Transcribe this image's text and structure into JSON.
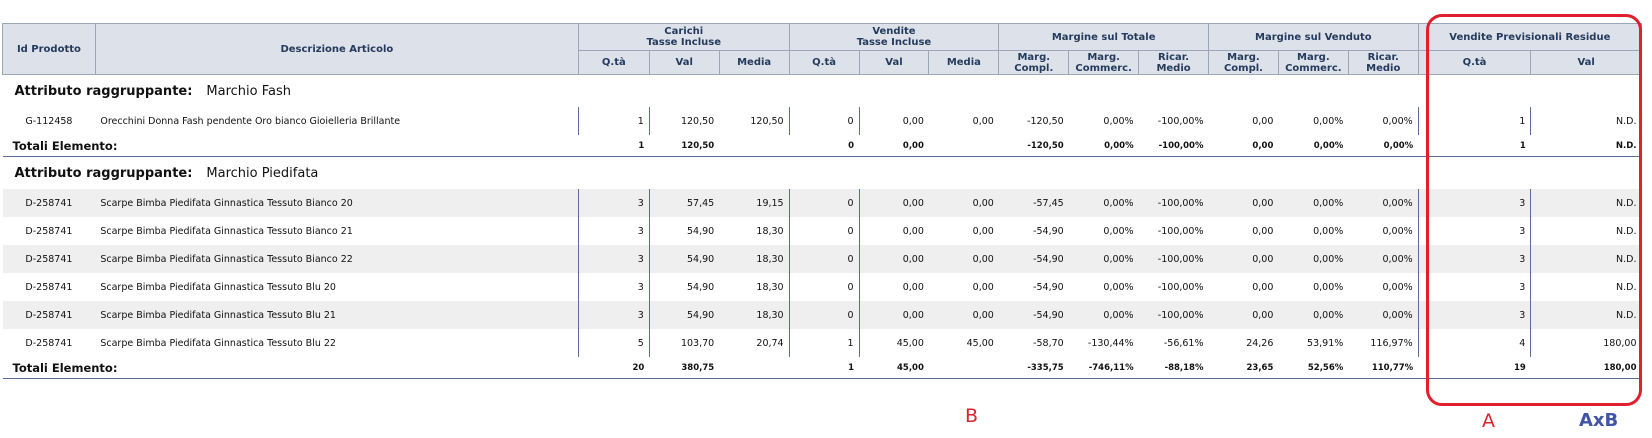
{
  "header": {
    "id_prodotto": "Id Prodotto",
    "descrizione": "Descrizione Articolo",
    "groups": {
      "carichi_1": "Carichi",
      "carichi_2": "Tasse Incluse",
      "vendite_1": "Vendite",
      "vendite_2": "Tasse Incluse",
      "margine_totale": "Margine sul Totale",
      "margine_venduto": "Margine sul Venduto",
      "previsionali": "Vendite Previsionali Residue"
    },
    "sub": {
      "qta": "Q.tà",
      "val": "Val",
      "media": "Media",
      "marg_compl": "Marg. Compl.",
      "marg_commerc": "Marg. Commerc.",
      "ricar_medio": "Ricar. Medio"
    }
  },
  "groups": [
    {
      "label": "Attributo raggruppante:",
      "name": "Marchio Fash",
      "rows": [
        {
          "id": "G-112458",
          "desc": "Orecchini Donna Fash pendente Oro bianco Gioielleria Brillante",
          "c_qta": "1",
          "c_val": "120,50",
          "c_media": "120,50",
          "v_qta": "0",
          "v_val": "0,00",
          "v_media": "0,00",
          "mt_compl": "-120,50",
          "mt_comm": "0,00%",
          "mt_ricar": "-100,00%",
          "mv_compl": "0,00",
          "mv_comm": "0,00%",
          "mv_ricar": "0,00%",
          "p_qta": "1",
          "p_val": "N.D."
        }
      ],
      "total": {
        "label": "Totali Elemento:",
        "c_qta": "1",
        "c_val": "120,50",
        "v_qta": "0",
        "v_val": "0,00",
        "mt_compl": "-120,50",
        "mt_comm": "0,00%",
        "mt_ricar": "-100,00%",
        "mv_compl": "0,00",
        "mv_comm": "0,00%",
        "mv_ricar": "0,00%",
        "p_qta": "1",
        "p_val": "N.D."
      }
    },
    {
      "label": "Attributo raggruppante:",
      "name": "Marchio Piedifata",
      "rows": [
        {
          "id": "D-258741",
          "desc": "Scarpe Bimba Piedifata Ginnastica Tessuto Bianco 20",
          "c_qta": "3",
          "c_val": "57,45",
          "c_media": "19,15",
          "v_qta": "0",
          "v_val": "0,00",
          "v_media": "0,00",
          "mt_compl": "-57,45",
          "mt_comm": "0,00%",
          "mt_ricar": "-100,00%",
          "mv_compl": "0,00",
          "mv_comm": "0,00%",
          "mv_ricar": "0,00%",
          "p_qta": "3",
          "p_val": "N.D."
        },
        {
          "id": "D-258741",
          "desc": "Scarpe Bimba Piedifata Ginnastica Tessuto Bianco 21",
          "c_qta": "3",
          "c_val": "54,90",
          "c_media": "18,30",
          "v_qta": "0",
          "v_val": "0,00",
          "v_media": "0,00",
          "mt_compl": "-54,90",
          "mt_comm": "0,00%",
          "mt_ricar": "-100,00%",
          "mv_compl": "0,00",
          "mv_comm": "0,00%",
          "mv_ricar": "0,00%",
          "p_qta": "3",
          "p_val": "N.D."
        },
        {
          "id": "D-258741",
          "desc": "Scarpe Bimba Piedifata Ginnastica Tessuto Bianco 22",
          "c_qta": "3",
          "c_val": "54,90",
          "c_media": "18,30",
          "v_qta": "0",
          "v_val": "0,00",
          "v_media": "0,00",
          "mt_compl": "-54,90",
          "mt_comm": "0,00%",
          "mt_ricar": "-100,00%",
          "mv_compl": "0,00",
          "mv_comm": "0,00%",
          "mv_ricar": "0,00%",
          "p_qta": "3",
          "p_val": "N.D."
        },
        {
          "id": "D-258741",
          "desc": "Scarpe Bimba Piedifata Ginnastica Tessuto Blu 20",
          "c_qta": "3",
          "c_val": "54,90",
          "c_media": "18,30",
          "v_qta": "0",
          "v_val": "0,00",
          "v_media": "0,00",
          "mt_compl": "-54,90",
          "mt_comm": "0,00%",
          "mt_ricar": "-100,00%",
          "mv_compl": "0,00",
          "mv_comm": "0,00%",
          "mv_ricar": "0,00%",
          "p_qta": "3",
          "p_val": "N.D."
        },
        {
          "id": "D-258741",
          "desc": "Scarpe Bimba Piedifata Ginnastica Tessuto Blu 21",
          "c_qta": "3",
          "c_val": "54,90",
          "c_media": "18,30",
          "v_qta": "0",
          "v_val": "0,00",
          "v_media": "0,00",
          "mt_compl": "-54,90",
          "mt_comm": "0,00%",
          "mt_ricar": "-100,00%",
          "mv_compl": "0,00",
          "mv_comm": "0,00%",
          "mv_ricar": "0,00%",
          "p_qta": "3",
          "p_val": "N.D."
        },
        {
          "id": "D-258741",
          "desc": "Scarpe Bimba Piedifata Ginnastica Tessuto Blu 22",
          "c_qta": "5",
          "c_val": "103,70",
          "c_media": "20,74",
          "v_qta": "1",
          "v_val": "45,00",
          "v_media": "45,00",
          "mt_compl": "-58,70",
          "mt_comm": "-130,44%",
          "mt_ricar": "-56,61%",
          "mv_compl": "24,26",
          "mv_comm": "53,91%",
          "mv_ricar": "116,97%",
          "p_qta": "4",
          "p_val": "180,00"
        }
      ],
      "total": {
        "label": "Totali Elemento:",
        "c_qta": "20",
        "c_val": "380,75",
        "v_qta": "1",
        "v_val": "45,00",
        "mt_compl": "-335,75",
        "mt_comm": "-746,11%",
        "mt_ricar": "-88,18%",
        "mv_compl": "23,65",
        "mv_comm": "52,56%",
        "mv_ricar": "110,77%",
        "p_qta": "19",
        "p_val": "180,00"
      }
    }
  ],
  "annotations": {
    "a": "A",
    "b": "B",
    "axb": "AxB"
  }
}
